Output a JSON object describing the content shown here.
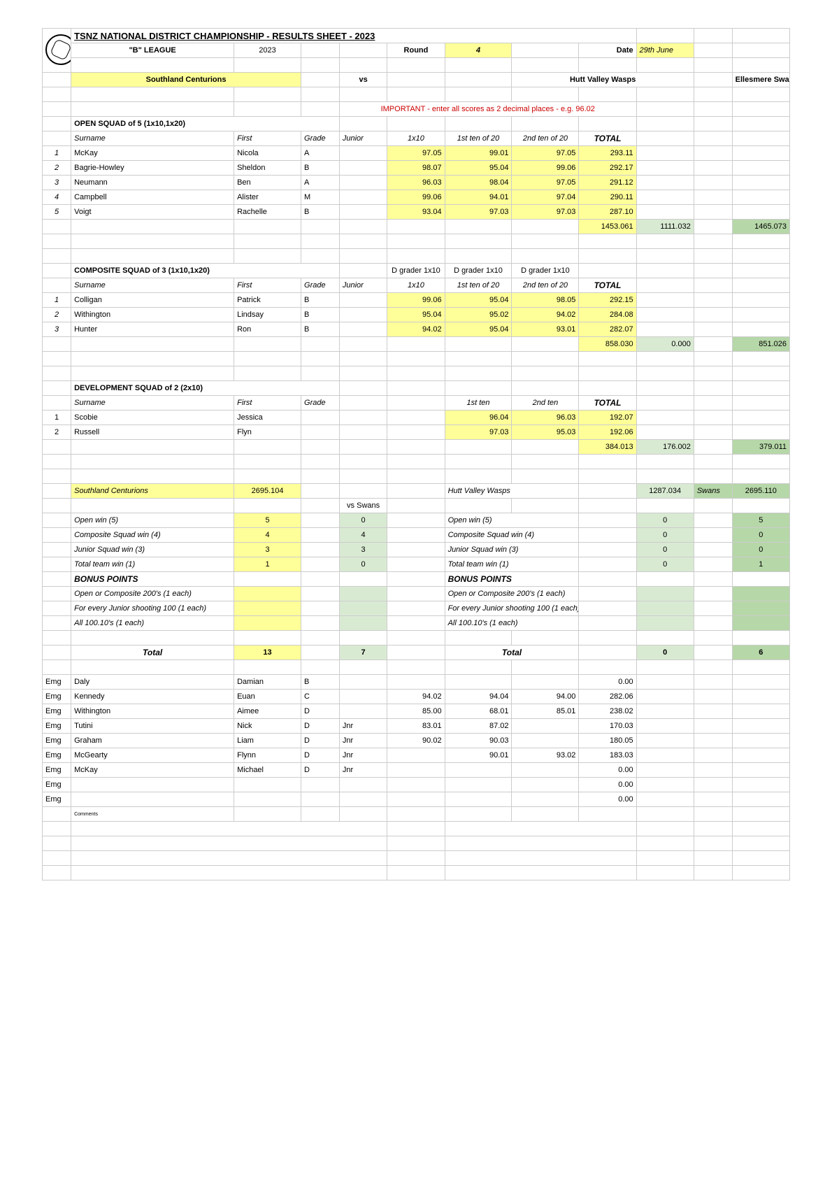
{
  "header": {
    "title": "TSNZ  NATIONAL DISTRICT CHAMPIONSHIP - RESULTS SHEET - 2023",
    "league_label": "\"B\" LEAGUE",
    "year": "2023",
    "round_label": "Round",
    "round_value": "4",
    "date_label": "Date",
    "date_value": "29th June",
    "team1": "Southland Centurions",
    "vs": "vs",
    "team2": "Hutt Valley Wasps",
    "team3": "Ellesmere Swans",
    "important": "IMPORTANT - enter all scores as 2 decimal places - e.g. 96.02"
  },
  "open": {
    "heading": "OPEN SQUAD of 5  (1x10,1x20)",
    "cols": {
      "surname": "Surname",
      "first": "First",
      "grade": "Grade",
      "junior": "Junior",
      "c1": "1x10",
      "c2": "1st ten of 20",
      "c3": "2nd ten of 20",
      "total": "TOTAL"
    },
    "rows": [
      {
        "n": "1",
        "surname": "McKay",
        "first": "Nicola",
        "grade": "A",
        "junior": "",
        "s1": "97.05",
        "s2": "99.01",
        "s3": "97.05",
        "total": "293.11"
      },
      {
        "n": "2",
        "surname": "Bagrie-Howley",
        "first": "Sheldon",
        "grade": "B",
        "junior": "",
        "s1": "98.07",
        "s2": "95.04",
        "s3": "99.06",
        "total": "292.17"
      },
      {
        "n": "3",
        "surname": "Neumann",
        "first": "Ben",
        "grade": "A",
        "junior": "",
        "s1": "96.03",
        "s2": "98.04",
        "s3": "97.05",
        "total": "291.12"
      },
      {
        "n": "4",
        "surname": "Campbell",
        "first": "Alister",
        "grade": "M",
        "junior": "",
        "s1": "99.06",
        "s2": "94.01",
        "s3": "97.04",
        "total": "290.11"
      },
      {
        "n": "5",
        "surname": "Voigt",
        "first": "Rachelle",
        "grade": "B",
        "junior": "",
        "s1": "93.04",
        "s2": "97.03",
        "s3": "97.03",
        "total": "287.10"
      }
    ],
    "team_total": "1453.061",
    "opp1_total": "1111.032",
    "opp2_total": "1465.073"
  },
  "composite": {
    "heading": "COMPOSITE SQUAD of 3  (1x10,1x20)",
    "dg": "D grader 1x10",
    "rows": [
      {
        "n": "1",
        "surname": "Colligan",
        "first": "Patrick",
        "grade": "B",
        "junior": "",
        "s1": "99.06",
        "s2": "95.04",
        "s3": "98.05",
        "total": "292.15"
      },
      {
        "n": "2",
        "surname": "Withington",
        "first": "Lindsay",
        "grade": "B",
        "junior": "",
        "s1": "95.04",
        "s2": "95.02",
        "s3": "94.02",
        "total": "284.08"
      },
      {
        "n": "3",
        "surname": "Hunter",
        "first": "Ron",
        "grade": "B",
        "junior": "",
        "s1": "94.02",
        "s2": "95.04",
        "s3": "93.01",
        "total": "282.07"
      }
    ],
    "team_total": "858.030",
    "opp1_total": "0.000",
    "opp2_total": "851.026"
  },
  "dev": {
    "heading": "DEVELOPMENT SQUAD of 2  (2x10)",
    "c1": "1st ten",
    "c2": "2nd ten",
    "rows": [
      {
        "n": "1",
        "surname": "Scobie",
        "first": "Jessica",
        "grade": "",
        "s1": "96.04",
        "s2": "96.03",
        "total": "192.07"
      },
      {
        "n": "2",
        "surname": "Russell",
        "first": "Flyn",
        "grade": "",
        "s1": "97.03",
        "s2": "95.03",
        "total": "192.06"
      }
    ],
    "team_total": "384.013",
    "opp1_total": "176.002",
    "opp2_total": "379.011"
  },
  "summary": {
    "team1": "Southland Centurions",
    "team1_total": "2695.104",
    "team2": "Hutt Valley Wasps",
    "team2_total": "1287.034",
    "team3": "Swans",
    "team3_total": "2695.110",
    "vs_swans": "vs Swans",
    "lines": [
      {
        "label": "Open win (5)",
        "v1": "5",
        "vs": "0",
        "label2": "Open win (5)",
        "v2": "0",
        "v3": "5"
      },
      {
        "label": "Composite Squad win (4)",
        "v1": "4",
        "vs": "4",
        "label2": "Composite Squad win (4)",
        "v2": "0",
        "v3": "0"
      },
      {
        "label": "Junior Squad win (3)",
        "v1": "3",
        "vs": "3",
        "label2": "Junior Squad win (3)",
        "v2": "0",
        "v3": "0"
      },
      {
        "label": "Total team win (1)",
        "v1": "1",
        "vs": "0",
        "label2": "Total team win (1)",
        "v2": "0",
        "v3": "1"
      }
    ],
    "bonus": "BONUS POINTS",
    "bonus_lines": [
      "Open or Composite 200's (1 each)",
      "For every Junior shooting 100 (1 each)",
      "All 100.10's (1 each)"
    ],
    "total_label": "Total",
    "total1": "13",
    "total_vs": "7",
    "total2": "0",
    "total3": "6"
  },
  "emg": {
    "rows": [
      {
        "tag": "Emg",
        "surname": "Daly",
        "first": "Damian",
        "grade": "B",
        "junior": "",
        "s1": "",
        "s2": "",
        "s3": "",
        "total": "0.00"
      },
      {
        "tag": "Emg",
        "surname": "Kennedy",
        "first": "Euan",
        "grade": "C",
        "junior": "",
        "s1": "94.02",
        "s2": "94.04",
        "s3": "94.00",
        "total": "282.06"
      },
      {
        "tag": "Emg",
        "surname": "Withington",
        "first": "Aimee",
        "grade": "D",
        "junior": "",
        "s1": "85.00",
        "s2": "68.01",
        "s3": "85.01",
        "total": "238.02"
      },
      {
        "tag": "Emg",
        "surname": "Tutini",
        "first": "Nick",
        "grade": "D",
        "junior": "Jnr",
        "s1": "83.01",
        "s2": "87.02",
        "s3": "",
        "total": "170.03"
      },
      {
        "tag": "Emg",
        "surname": "Graham",
        "first": "Liam",
        "grade": "D",
        "junior": "Jnr",
        "s1": "90.02",
        "s2": "90.03",
        "s3": "",
        "total": "180.05"
      },
      {
        "tag": "Emg",
        "surname": "McGearty",
        "first": "Flynn",
        "grade": "D",
        "junior": "Jnr",
        "s1": "",
        "s2": "90.01",
        "s3": "93.02",
        "total": "183.03"
      },
      {
        "tag": "Emg",
        "surname": "McKay",
        "first": "Michael",
        "grade": "D",
        "junior": "Jnr",
        "s1": "",
        "s2": "",
        "s3": "",
        "total": "0.00"
      },
      {
        "tag": "Emg",
        "surname": "",
        "first": "",
        "grade": "",
        "junior": "",
        "s1": "",
        "s2": "",
        "s3": "",
        "total": "0.00"
      },
      {
        "tag": "Emg",
        "surname": "",
        "first": "",
        "grade": "",
        "junior": "",
        "s1": "",
        "s2": "",
        "s3": "",
        "total": "0.00"
      }
    ],
    "comments": "Comments"
  },
  "style": {
    "colwidths": [
      "30",
      "170",
      "70",
      "40",
      "50",
      "60",
      "70",
      "70",
      "60",
      "60",
      "40",
      "60"
    ],
    "yellow": "#ffff99",
    "green": "#d9ead3",
    "lime": "#b6d7a8"
  }
}
